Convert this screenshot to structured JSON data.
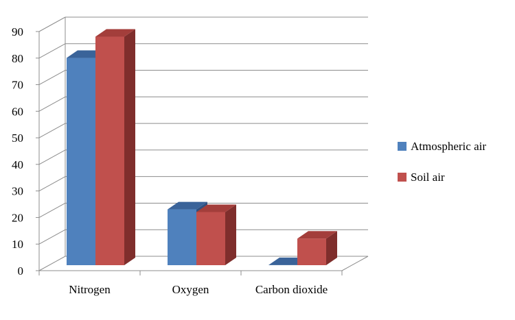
{
  "chart_data": {
    "type": "bar",
    "categories": [
      "Nitrogen",
      "Oxygen",
      "Carbon dioxide"
    ],
    "series": [
      {
        "name": "Atmospheric air",
        "values": [
          78,
          21,
          0.03
        ],
        "color": "#4F81BD",
        "top_color": "#3A6399",
        "side_color": "#2F5080"
      },
      {
        "name": "Soil air",
        "values": [
          86,
          20,
          10
        ],
        "color": "#C0504D",
        "top_color": "#A33E3B",
        "side_color": "#7F2E2C"
      }
    ],
    "title": "",
    "xlabel": "",
    "ylabel": "",
    "ylim": [
      0,
      90
    ],
    "yticks": [
      "0",
      "10",
      "20",
      "30",
      "40",
      "50",
      "60",
      "70",
      "80",
      "90"
    ],
    "grid": true,
    "legend_position": "right"
  }
}
